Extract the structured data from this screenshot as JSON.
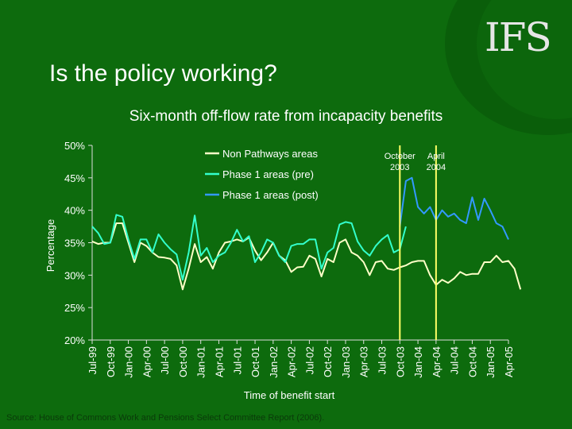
{
  "logo_text": "IFS",
  "title": "Is the policy working?",
  "source": "Source: House of Commons Work and Pensions Select Committee Report (2006).",
  "colors": {
    "background": "#0d6b0d",
    "non_pathways": "#ffffc8",
    "phase1_pre": "#33ffcc",
    "phase1_post": "#3399ff",
    "marker_line": "#ffff66"
  },
  "chart_data": {
    "type": "line",
    "title": "Six-month off-flow rate from incapacity benefits",
    "xlabel": "Time of benefit start",
    "ylabel": "Percentage",
    "ylim": [
      20,
      50
    ],
    "yticks": [
      20,
      25,
      30,
      35,
      40,
      45,
      50
    ],
    "ytick_labels": [
      "20%",
      "25%",
      "30%",
      "35%",
      "40%",
      "45%",
      "50%"
    ],
    "x_labels": [
      "Jul-99",
      "Oct-99",
      "Jan-00",
      "Apr-00",
      "Jul-00",
      "Oct-00",
      "Jan-01",
      "Apr-01",
      "Jul-01",
      "Oct-01",
      "Jan-02",
      "Apr-02",
      "Jul-02",
      "Oct-02",
      "Jan-03",
      "Apr-03",
      "Jul-03",
      "Oct-03",
      "Jan-04",
      "Apr-04",
      "Jul-04",
      "Oct-04",
      "Jan-05",
      "Apr-05"
    ],
    "x_start": "Jul-99",
    "x_end": "Apr-05",
    "legend_position": "top-center",
    "markers": [
      {
        "label_line1": "October",
        "label_line2": "2003",
        "x": "Oct-03"
      },
      {
        "label_line1": "April",
        "label_line2": "2004",
        "x": "Apr-04"
      }
    ],
    "series": [
      {
        "name": "Non Pathways areas",
        "color_key": "non_pathways",
        "values": [
          35.2,
          34.8,
          35.0,
          35.0,
          38.0,
          38.0,
          35.0,
          32.0,
          35.0,
          34.5,
          33.5,
          32.8,
          32.7,
          32.5,
          31.5,
          27.8,
          31.0,
          34.8,
          32.0,
          32.8,
          31.0,
          33.5,
          35.0,
          35.2,
          35.5,
          35.2,
          35.8,
          33.8,
          32.3,
          33.5,
          35.0,
          33.0,
          32.3,
          30.5,
          31.2,
          31.3,
          33.0,
          32.5,
          29.8,
          32.5,
          32.0,
          35.0,
          35.5,
          33.5,
          33.0,
          32.0,
          30.0,
          32.0,
          32.2,
          31.0,
          30.8,
          31.2,
          31.5,
          32.0,
          32.2,
          32.2,
          30.0,
          28.5,
          29.3,
          28.8,
          29.5,
          30.5,
          30.0,
          30.2,
          30.2,
          32.0,
          32.0,
          33.0,
          32.0,
          32.2,
          31.0,
          27.8
        ]
      },
      {
        "name": "Phase 1 areas (pre)",
        "color_key": "phase1_pre",
        "values": [
          37.5,
          36.5,
          34.8,
          35.0,
          39.3,
          39.0,
          35.5,
          32.5,
          35.5,
          35.5,
          33.5,
          36.3,
          35.0,
          34.0,
          33.2,
          29.3,
          33.5,
          39.2,
          33.0,
          34.2,
          32.0,
          33.0,
          33.5,
          35.0,
          37.0,
          35.2,
          36.0,
          32.0,
          33.5,
          35.5,
          35.0,
          33.0,
          32.0,
          34.5,
          34.8,
          34.8,
          35.5,
          35.5,
          31.0,
          33.5,
          34.2,
          37.8,
          38.2,
          38.0,
          35.2,
          33.8,
          33.0,
          34.5,
          35.5,
          36.2,
          33.5,
          34.0,
          37.5
        ]
      },
      {
        "name": "Phase 1 areas (post)",
        "color_key": "phase1_post",
        "values": [
          37.5,
          44.5,
          45.0,
          40.5,
          39.5,
          40.5,
          38.5,
          40.0,
          39.0,
          39.5,
          38.5,
          38.0,
          42.0,
          38.5,
          41.8,
          40.0,
          38.0,
          37.5,
          35.5
        ]
      }
    ]
  }
}
